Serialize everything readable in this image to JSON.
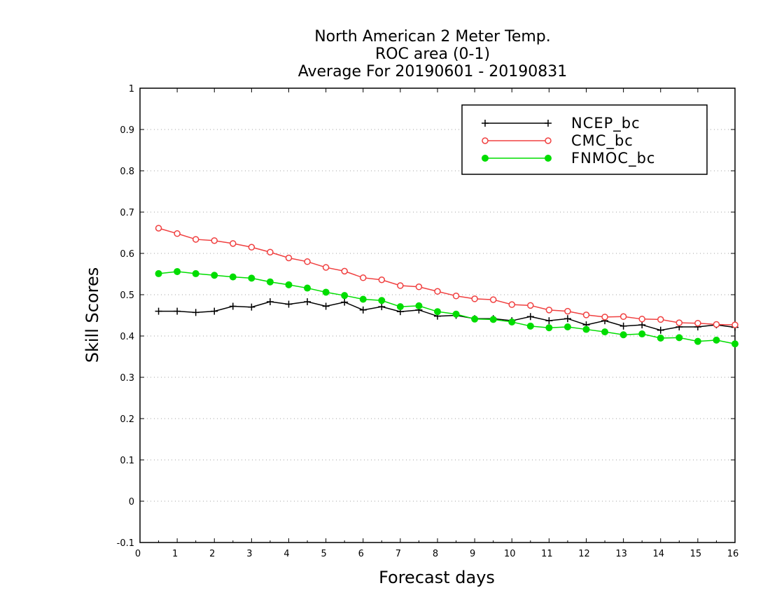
{
  "chart_data": {
    "type": "line",
    "title_lines": [
      "North American 2 Meter Temp.",
      "ROC area (0-1)",
      "Average For 20190601 - 20190831"
    ],
    "xlabel": "Forecast days",
    "ylabel": "Skill Scores",
    "xlim": [
      0,
      16
    ],
    "ylim": [
      -0.1,
      1
    ],
    "xticks": [
      "0",
      "1",
      "2",
      "3",
      "4",
      "5",
      "6",
      "7",
      "8",
      "9",
      "10",
      "11",
      "12",
      "13",
      "14",
      "15",
      "16"
    ],
    "yticks": [
      "-0.1",
      "0",
      "0.1",
      "0.2",
      "0.3",
      "0.4",
      "0.5",
      "0.6",
      "0.7",
      "0.8",
      "0.9",
      "1"
    ],
    "grid": "horizontal-dotted",
    "legend_position": "top-right",
    "x": [
      0.5,
      1,
      1.5,
      2,
      2.5,
      3,
      3.5,
      4,
      4.5,
      5,
      5.5,
      6,
      6.5,
      7,
      7.5,
      8,
      8.5,
      9,
      9.5,
      10,
      10.5,
      11,
      11.5,
      12,
      12.5,
      13,
      13.5,
      14,
      14.5,
      15,
      15.5,
      16
    ],
    "series": [
      {
        "name": "NCEP_bc",
        "color": "#000000",
        "marker": "plus",
        "values": [
          0.46,
          0.46,
          0.457,
          0.46,
          0.472,
          0.47,
          0.483,
          0.477,
          0.483,
          0.472,
          0.482,
          0.463,
          0.471,
          0.459,
          0.463,
          0.448,
          0.45,
          0.442,
          0.442,
          0.437,
          0.447,
          0.437,
          0.442,
          0.427,
          0.437,
          0.424,
          0.427,
          0.414,
          0.422,
          0.422,
          0.427,
          0.421
        ]
      },
      {
        "name": "CMC_bc",
        "color": "#f04040",
        "marker": "open-circle",
        "values": [
          0.661,
          0.648,
          0.634,
          0.631,
          0.624,
          0.615,
          0.603,
          0.589,
          0.58,
          0.566,
          0.557,
          0.541,
          0.536,
          0.522,
          0.519,
          0.508,
          0.497,
          0.49,
          0.488,
          0.476,
          0.474,
          0.463,
          0.46,
          0.451,
          0.446,
          0.447,
          0.441,
          0.44,
          0.432,
          0.431,
          0.428,
          0.427
        ]
      },
      {
        "name": "FNMOC_bc",
        "color": "#00dd00",
        "marker": "filled-circle",
        "values": [
          0.551,
          0.556,
          0.551,
          0.547,
          0.543,
          0.54,
          0.531,
          0.524,
          0.516,
          0.506,
          0.498,
          0.489,
          0.486,
          0.471,
          0.473,
          0.459,
          0.453,
          0.441,
          0.44,
          0.434,
          0.424,
          0.42,
          0.422,
          0.416,
          0.41,
          0.403,
          0.405,
          0.395,
          0.396,
          0.387,
          0.39,
          0.381
        ]
      }
    ]
  }
}
